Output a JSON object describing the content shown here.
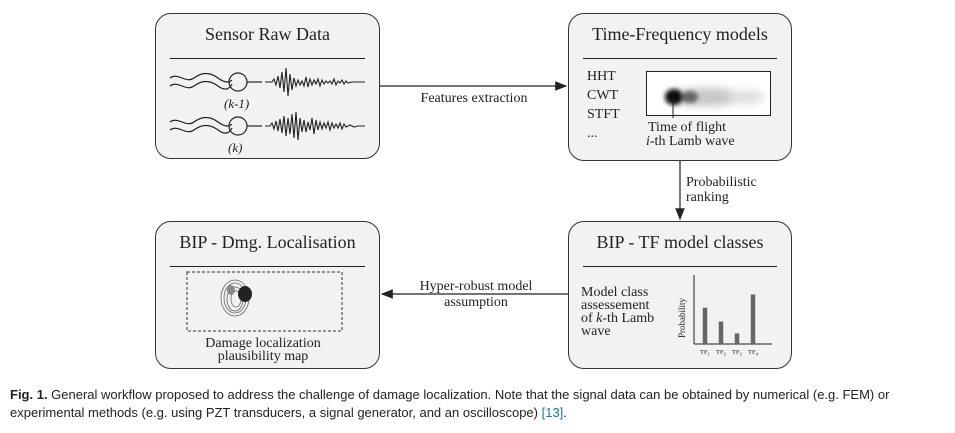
{
  "boxes": {
    "sensor": {
      "title": "Sensor Raw Data",
      "label_k1": "(k-1)",
      "label_k": "(k)"
    },
    "tf_models": {
      "title": "Time-Frequency models",
      "methods": [
        "HHT",
        "CWT",
        "STFT",
        "..."
      ],
      "tof_line1": "Time of flight",
      "tof_line2_italic": "i",
      "tof_line2_rest": "-th Lamb wave"
    },
    "bip_tf": {
      "title": "BIP - TF model classes",
      "text_line1": "Model class",
      "text_line2": "assessement",
      "text_line3_pre": "of ",
      "text_line3_italic": "k",
      "text_line3_post": "-th Lamb",
      "text_line4": "wave",
      "ylabel": "Probability"
    },
    "bip_loc": {
      "title": "BIP - Dmg. Localisation",
      "map_line1": "Damage localization",
      "map_line2": "plausibility map"
    }
  },
  "arrows": {
    "features": "Features extraction",
    "ranking_line1": "Probabilistic",
    "ranking_line2": "ranking",
    "hyper_line1": "Hyper-robust model",
    "hyper_line2": "assumption"
  },
  "chart_data": {
    "type": "bar",
    "categories": [
      "TF1",
      "TF2",
      "TF3",
      "TF4"
    ],
    "values": [
      0.55,
      0.34,
      0.16,
      0.75
    ],
    "ylabel": "Probability",
    "ylim": [
      0,
      1
    ]
  },
  "caption": {
    "fig": "Fig. 1.",
    "text": " General workflow proposed to address the challenge of damage localization. Note that the signal data can be obtained by numerical (e.g. FEM) or experimental methods (e.g. using PZT transducers, a signal generator, and an oscilloscope) ",
    "ref": "[13]",
    "end": "."
  }
}
